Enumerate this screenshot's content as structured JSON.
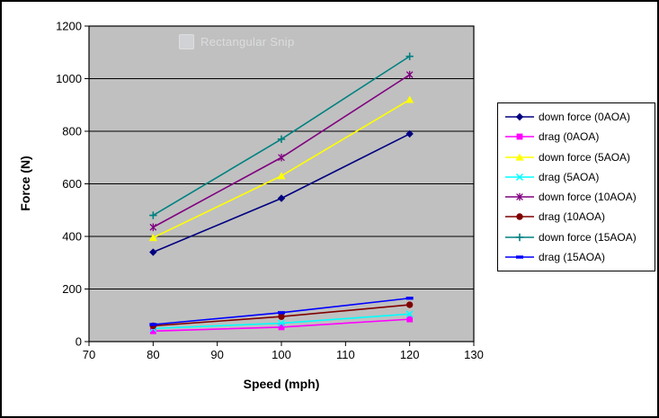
{
  "watermark": {
    "label": "Rectangular Snip"
  },
  "chart_data": {
    "type": "line",
    "x": [
      80,
      100,
      120
    ],
    "xlabel": "Speed (mph)",
    "ylabel": "Force (N)",
    "xlim": [
      70,
      130
    ],
    "ylim": [
      0,
      1200
    ],
    "x_ticks": [
      70,
      80,
      90,
      100,
      110,
      120,
      130
    ],
    "y_ticks": [
      0,
      200,
      400,
      600,
      800,
      1000,
      1200
    ],
    "grid": "horizontal gridlines on",
    "plot_bg": "#c0c0c0",
    "grid_color": "#000000",
    "legend_position": "right",
    "series": [
      {
        "name": "down force (0AOA)",
        "color": "#000080",
        "marker": "diamond",
        "values": [
          340,
          545,
          790
        ]
      },
      {
        "name": "drag (0AOA)",
        "color": "#ff00ff",
        "marker": "square",
        "values": [
          40,
          55,
          85
        ]
      },
      {
        "name": "down force (5AOA)",
        "color": "#ffff00",
        "marker": "triangle",
        "values": [
          395,
          630,
          920
        ]
      },
      {
        "name": "drag (5AOA)",
        "color": "#00ffff",
        "marker": "x",
        "values": [
          50,
          70,
          105
        ]
      },
      {
        "name": "down force (10AOA)",
        "color": "#800080",
        "marker": "asterisk",
        "values": [
          435,
          700,
          1015
        ]
      },
      {
        "name": "drag (10AOA)",
        "color": "#800000",
        "marker": "circle",
        "values": [
          60,
          95,
          140
        ]
      },
      {
        "name": "down force (15AOA)",
        "color": "#008080",
        "marker": "plus",
        "values": [
          480,
          770,
          1085
        ]
      },
      {
        "name": "drag (15AOA)",
        "color": "#0000ff",
        "marker": "dash",
        "values": [
          65,
          110,
          165
        ]
      }
    ]
  }
}
